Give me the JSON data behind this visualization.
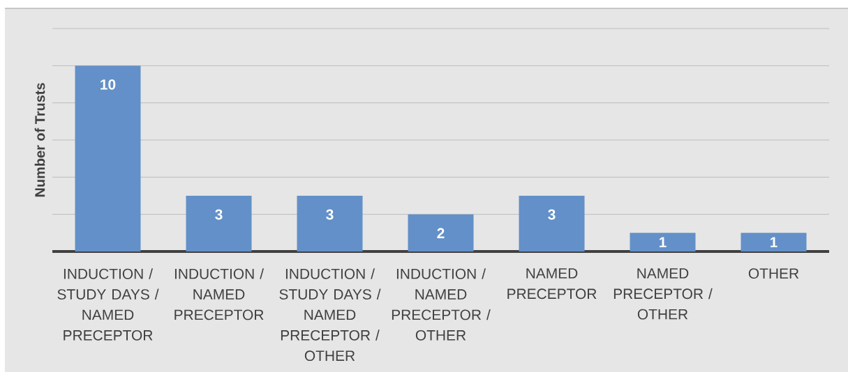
{
  "chart_data": {
    "type": "bar",
    "ylabel": "Number of Trusts",
    "categories": [
      "INDUCTION / STUDY DAYS / NAMED PRECEPTOR",
      "INDUCTION / NAMED PRECEPTOR",
      "INDUCTION / STUDY DAYS / NAMED PRECEPTOR / OTHER",
      "INDUCTION / NAMED PRECEPTOR / OTHER",
      "NAMED PRECEPTOR",
      "NAMED PRECEPTOR / OTHER",
      "OTHER"
    ],
    "values": [
      10,
      3,
      3,
      2,
      3,
      1,
      1
    ],
    "color": "#6390c8",
    "ylim": [
      0,
      12
    ],
    "yticks": [
      {
        "value": 0,
        "label": null
      },
      {
        "value": 2,
        "label": null
      },
      {
        "value": 4,
        "label": null
      },
      {
        "value": 6,
        "label": null
      },
      {
        "value": 8,
        "label": null
      },
      {
        "value": 10,
        "label": null
      },
      {
        "value": 12,
        "label": null
      }
    ],
    "tick_labels": "x",
    "grid": "y",
    "data_labels": true
  }
}
